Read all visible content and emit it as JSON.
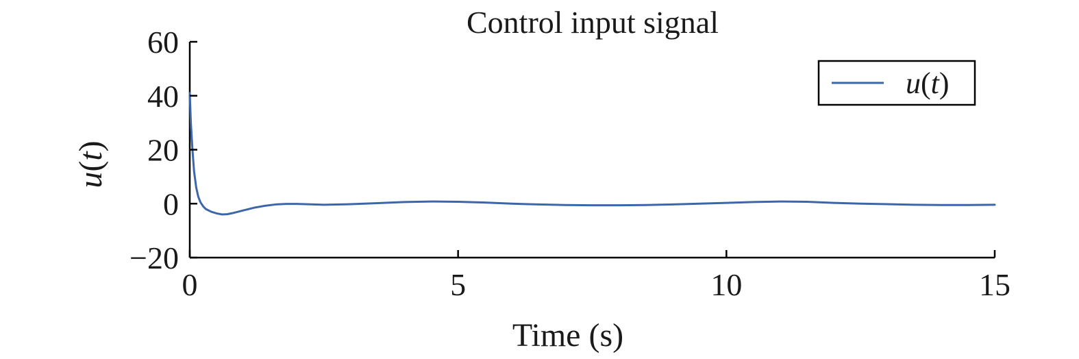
{
  "chart_data": {
    "type": "line",
    "title": "Control input signal",
    "xlabel": "Time (s)",
    "ylabel": {
      "var": "u",
      "open": "(",
      "arg": "t",
      "close": ")"
    },
    "xlim": [
      0,
      15
    ],
    "ylim": [
      -20,
      60
    ],
    "xticks": [
      0,
      5,
      10,
      15
    ],
    "yticks": [
      -20,
      0,
      20,
      40,
      60
    ],
    "xtick_labels": [
      "0",
      "5",
      "10",
      "15"
    ],
    "ytick_labels": [
      "−20",
      "0",
      "20",
      "40",
      "60"
    ],
    "grid": false,
    "legend": {
      "position": "top-right"
    },
    "series": [
      {
        "name": "u(t)",
        "legend_label": {
          "var": "u",
          "open": "(",
          "arg": "t",
          "close": ")"
        },
        "color": "#3c66aa",
        "x": [
          0,
          0.02,
          0.05,
          0.08,
          0.12,
          0.16,
          0.2,
          0.25,
          0.3,
          0.4,
          0.5,
          0.6,
          0.7,
          0.8,
          1.0,
          1.2,
          1.4,
          1.6,
          1.8,
          2.0,
          2.5,
          3.0,
          3.5,
          4.0,
          4.5,
          5.0,
          5.5,
          6.0,
          6.5,
          7.0,
          7.5,
          8.0,
          8.5,
          9.0,
          9.5,
          10.0,
          10.5,
          11.0,
          11.5,
          12.0,
          12.5,
          13.0,
          13.5,
          14.0,
          14.5,
          15.0
        ],
        "y": [
          41,
          30,
          20,
          12,
          6,
          2.5,
          0.5,
          -1,
          -2,
          -3,
          -3.6,
          -4,
          -3.9,
          -3.5,
          -2.5,
          -1.5,
          -0.8,
          -0.3,
          -0.1,
          -0.1,
          -0.4,
          -0.2,
          0.2,
          0.6,
          0.8,
          0.7,
          0.4,
          0.0,
          -0.3,
          -0.5,
          -0.6,
          -0.6,
          -0.5,
          -0.3,
          0.0,
          0.3,
          0.6,
          0.8,
          0.7,
          0.3,
          0.0,
          -0.2,
          -0.4,
          -0.5,
          -0.5,
          -0.4
        ]
      }
    ]
  }
}
